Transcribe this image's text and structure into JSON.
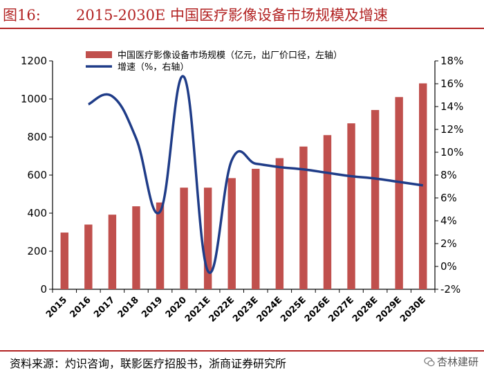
{
  "header": {
    "figure_label": "图16:",
    "title": "2015-2030E 中国医疗影像设备市场规模及增速"
  },
  "footer": {
    "source": "资料来源：灼识咨询，联影医疗招股书，浙商证券研究所",
    "watermark": "杏林建研",
    "watermark_icon": "wechat-icon"
  },
  "colors": {
    "bar": "#c0504d",
    "line": "#1f3c88",
    "title": "#b22222"
  },
  "chart_data": {
    "type": "bar",
    "categories": [
      "2015",
      "2016",
      "2017",
      "2018",
      "2019",
      "2020",
      "2021E",
      "2022E",
      "2023E",
      "2024E",
      "2025E",
      "2026E",
      "2027E",
      "2028E",
      "2029E",
      "2030E"
    ],
    "series": [
      {
        "name": "中国医疗影像设备市场规模（亿元，出厂价口径，左轴）",
        "type": "bar",
        "axis": "left",
        "values": [
          298,
          340,
          392,
          436,
          456,
          534,
          534,
          584,
          633,
          689,
          750,
          810,
          872,
          942,
          1010,
          1082
        ]
      },
      {
        "name": "增速（%，右轴）",
        "type": "line",
        "axis": "right",
        "x": [
          "2016",
          "2017",
          "2018",
          "2019",
          "2020",
          "2021E",
          "2022E",
          "2023E",
          "2024E",
          "2025E",
          "2026E",
          "2027E",
          "2028E",
          "2029E",
          "2030E"
        ],
        "values": [
          14.2,
          14.9,
          11.2,
          4.8,
          16.6,
          -0.4,
          9.3,
          9.0,
          8.7,
          8.5,
          8.2,
          7.9,
          7.7,
          7.4,
          7.1
        ]
      }
    ],
    "left_axis": {
      "ylim": [
        0,
        1200
      ],
      "ticks": [
        "0",
        "200",
        "400",
        "600",
        "800",
        "1000",
        "1200"
      ]
    },
    "right_axis": {
      "ylim": [
        -2,
        18
      ],
      "ticks": [
        "-2%",
        "0%",
        "2%",
        "4%",
        "6%",
        "8%",
        "10%",
        "12%",
        "14%",
        "16%",
        "18%"
      ]
    },
    "legend_position": "top-left"
  }
}
